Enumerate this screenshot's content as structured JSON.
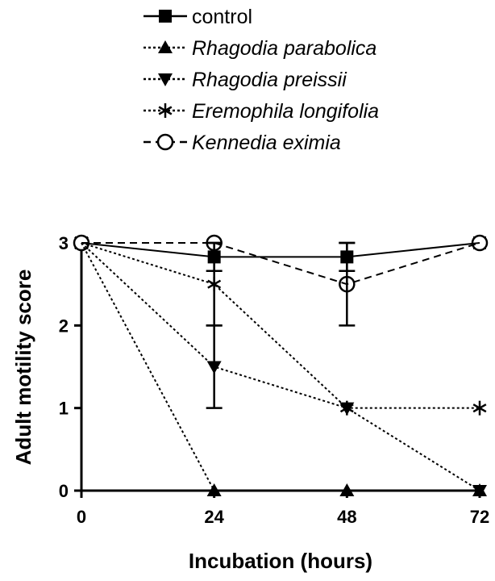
{
  "chart_data": {
    "type": "line",
    "xlabel": "Incubation (hours)",
    "ylabel": "Adult motility score",
    "x": [
      0,
      24,
      48,
      72
    ],
    "xticks": [
      "0",
      "24",
      "48",
      "72"
    ],
    "yticks": [
      "0",
      "1",
      "2",
      "3"
    ],
    "xlim": [
      0,
      72
    ],
    "ylim": [
      0,
      3
    ],
    "grid": false,
    "legend_position": "top-left, above plot",
    "series": [
      {
        "name": "control",
        "italic": false,
        "marker": "square",
        "line": "solid",
        "values": [
          3,
          2.83,
          2.83,
          3
        ],
        "errors": [
          0,
          0.17,
          0.17,
          0
        ]
      },
      {
        "name": "Rhagodia parabolica",
        "italic": true,
        "marker": "triangle-up",
        "line": "dotted",
        "values": [
          3,
          0,
          0,
          0
        ],
        "errors": [
          0,
          0,
          0,
          0
        ]
      },
      {
        "name": "Rhagodia preissii",
        "italic": true,
        "marker": "triangle-down",
        "line": "dotted",
        "values": [
          3,
          1.5,
          1,
          0
        ],
        "errors": [
          0,
          0.5,
          0,
          0
        ]
      },
      {
        "name": "Eremophila longifolia",
        "italic": true,
        "marker": "asterisk",
        "line": "dotted",
        "values": [
          3,
          2.5,
          1,
          1
        ],
        "errors": [
          0,
          0.5,
          0,
          0
        ]
      },
      {
        "name": "Kennedia eximia",
        "italic": true,
        "marker": "open-circle",
        "line": "dashed",
        "values": [
          3,
          3,
          2.5,
          3
        ],
        "errors": [
          0,
          0,
          0.5,
          0
        ]
      }
    ]
  }
}
